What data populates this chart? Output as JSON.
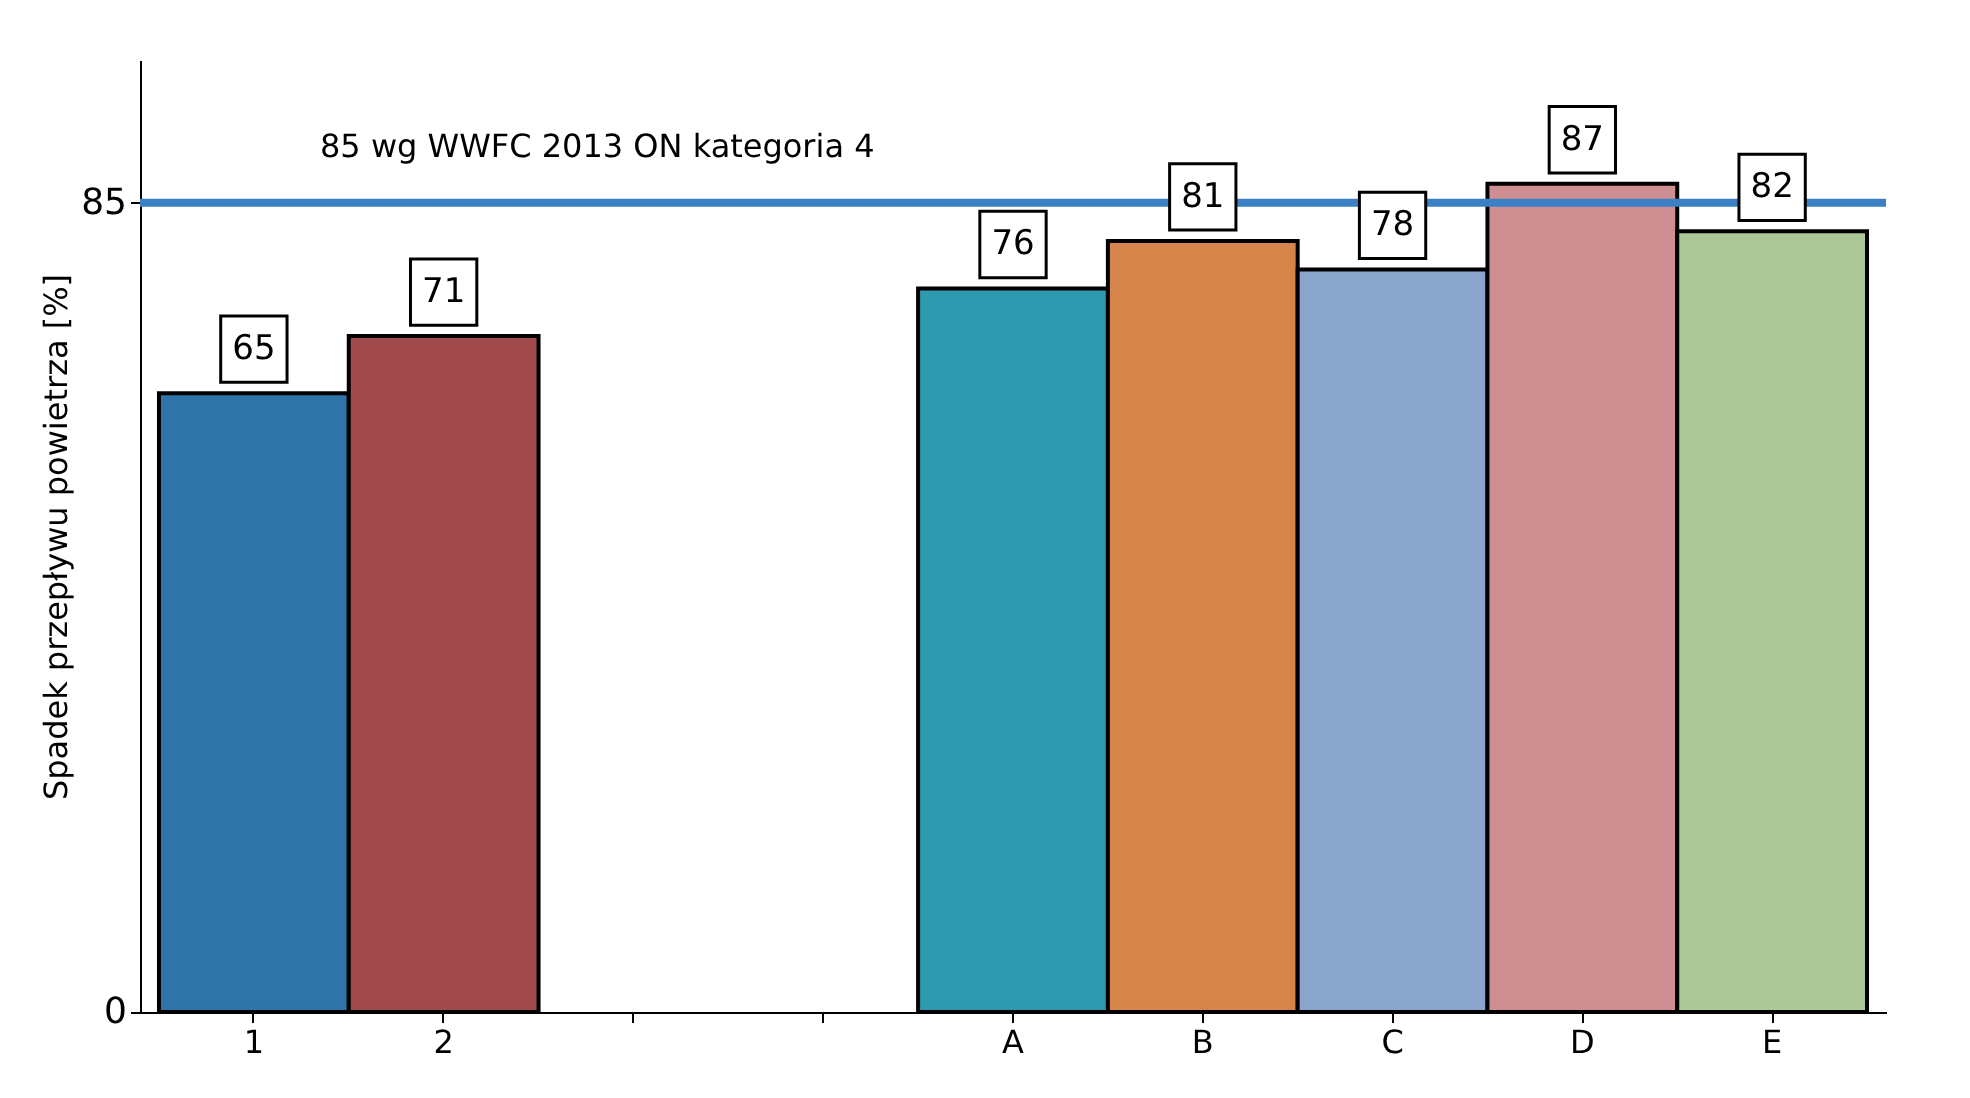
{
  "chart_data": {
    "type": "bar",
    "ylabel": "Spadek przepływu powietrza [%]",
    "categories": [
      "1",
      "2",
      null,
      null,
      "A",
      "B",
      "C",
      "D",
      "E"
    ],
    "values": [
      65,
      71,
      null,
      null,
      76,
      81,
      78,
      87,
      82
    ],
    "colors": [
      "#2e74a8",
      "#a04a4c",
      "#ffffff",
      "#ffffff",
      "#2e9ab0",
      "#d5844a",
      "#8aa6cc",
      "#cf8f92",
      "#adc897"
    ],
    "ylim": [
      0,
      100
    ],
    "yticks": [
      0,
      85
    ],
    "grid": false,
    "data_labels": true,
    "ref_lines": [
      {
        "axis": "y",
        "value": 85,
        "label": "85 wg WWFC 2013 ON kategoria 4",
        "color": "#3b7fc4"
      }
    ]
  }
}
